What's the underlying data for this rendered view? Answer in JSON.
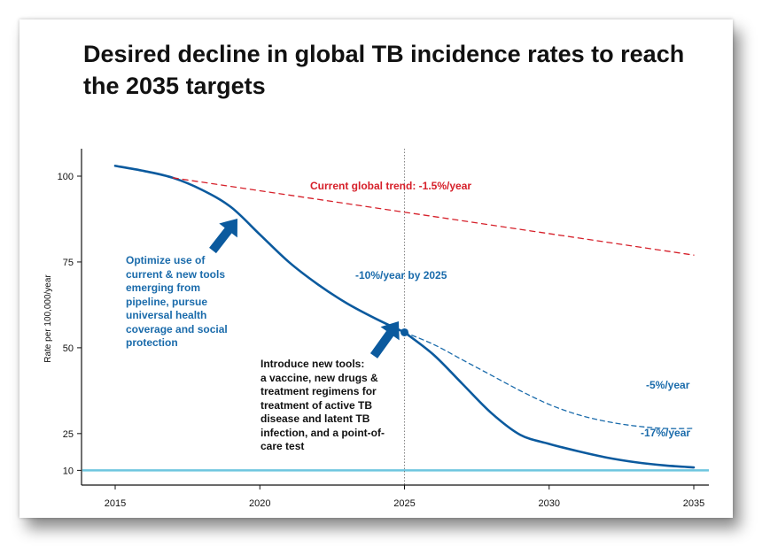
{
  "colors": {
    "main": "#0b5a9e",
    "trend": "#d6202a",
    "target": "#6ec6df",
    "scenario": "#1a6bab"
  },
  "chart_data": {
    "type": "line",
    "title": "Desired decline in global TB incidence rates to reach the 2035 targets",
    "xlabel": "",
    "ylabel": "Rate per 100,000/year",
    "xlim": [
      2015,
      2035
    ],
    "xticks": [
      2015,
      2020,
      2025,
      2030,
      2035
    ],
    "yticks": [
      10,
      25,
      50,
      75,
      100
    ],
    "y_axis_segments": [
      [
        0,
        10,
        10
      ],
      [
        10,
        25,
        25
      ],
      [
        25,
        100,
        175
      ]
    ],
    "grid": false,
    "series": [
      {
        "id": "main",
        "style": "solid",
        "x": [
          2015,
          2016,
          2017,
          2018,
          2019,
          2020,
          2021,
          2022,
          2023,
          2024,
          2025
        ],
        "y": [
          103,
          101.5,
          99.5,
          96,
          91,
          83,
          75,
          68.5,
          63,
          58.5,
          54.5
        ]
      },
      {
        "id": "main-17",
        "name": "-17%/year",
        "style": "solid",
        "x": [
          2025,
          2026,
          2027,
          2028,
          2029,
          2030,
          2031,
          2032,
          2033,
          2034,
          2035
        ],
        "y": [
          54.5,
          48,
          39.5,
          31,
          24.5,
          20.8,
          17.8,
          15.2,
          13.3,
          12.0,
          11.2
        ]
      },
      {
        "id": "scenario-5",
        "name": "-5%/year",
        "style": "dashed",
        "x": [
          2025,
          2026,
          2027,
          2028,
          2029,
          2030,
          2031,
          2032,
          2033,
          2034,
          2035
        ],
        "y": [
          54.5,
          51,
          46.5,
          42,
          37.5,
          33.5,
          30.5,
          28.5,
          27.2,
          26.5,
          26.5
        ]
      },
      {
        "id": "current-trend",
        "name": "Current global trend:  -1.5%/year",
        "style": "dashed",
        "x": [
          2017,
          2035
        ],
        "y": [
          99.5,
          77
        ]
      }
    ],
    "target": {
      "y": 10
    },
    "milestone": {
      "x": 2025,
      "y": 54.5,
      "label": "-10%/year by 2025"
    },
    "annotations": {
      "trend": "Current global trend:  -1.5%/year",
      "optimize": [
        "Optimize use of",
        "current & new tools",
        "emerging from",
        "pipeline, pursue",
        "universal health",
        "coverage and social",
        "protection"
      ],
      "introduce": [
        "Introduce new tools:",
        "a vaccine, new drugs &",
        "treatment regimens for",
        "treatment of active TB",
        "disease and latent TB",
        "infection, and a point-of-",
        "care test"
      ],
      "five": "-5%/year",
      "seventeen": "-17%/year"
    }
  }
}
